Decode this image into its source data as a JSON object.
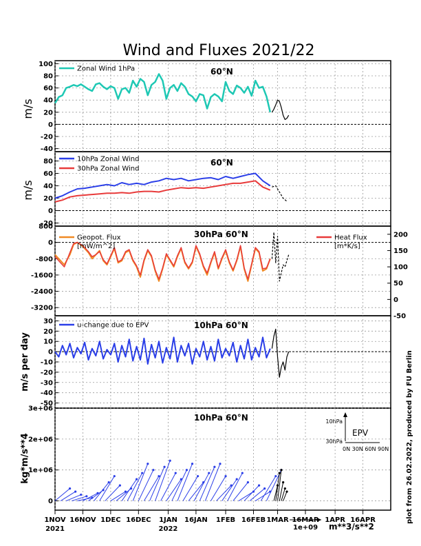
{
  "title": "Wind and Fluxes 2021/22",
  "side_note": "plot from 26.02.2022, produced by FU Berlin",
  "x_axis": {
    "ticks": [
      {
        "day": 0,
        "label": "1NOV",
        "year": "2021"
      },
      {
        "day": 15,
        "label": "16NOV"
      },
      {
        "day": 30,
        "label": "1DEC"
      },
      {
        "day": 45,
        "label": "16DEC"
      },
      {
        "day": 61,
        "label": "1JAN",
        "year": "2022"
      },
      {
        "day": 76,
        "label": "16JAN"
      },
      {
        "day": 92,
        "label": "1FEB"
      },
      {
        "day": 107,
        "label": "16FEB"
      },
      {
        "day": 120,
        "label": "1MAR"
      },
      {
        "day": 135,
        "label": "16MAR"
      },
      {
        "day": 151,
        "label": "1APR"
      },
      {
        "day": 166,
        "label": "16APR"
      }
    ],
    "range": [
      0,
      181
    ]
  },
  "scale_arrow": {
    "label": "1e+09",
    "units": "m**3/s**2"
  },
  "panels": {
    "p1": {
      "label": "60°N",
      "ylabel": "m/s",
      "yticks": [
        "100",
        "80",
        "60",
        "40",
        "20",
        "0",
        "-20",
        "-40"
      ],
      "legend": [
        "Zonal Wind 1hPa"
      ]
    },
    "p2": {
      "label": "60°N",
      "ylabel": "m/s",
      "yticks": [
        "80",
        "60",
        "40",
        "20",
        "0",
        "-20"
      ],
      "legend": [
        "10hPa Zonal Wind",
        "30hPa Zonal Wind"
      ]
    },
    "p3": {
      "label": "30hPa 60°N",
      "yticks_left": [
        "-3200",
        "-2400",
        "-1600",
        "-800",
        "0",
        "800"
      ],
      "yticks_right": [
        "200",
        "150",
        "100",
        "50",
        "0",
        "-50"
      ],
      "legend_left": [
        "Geopot. Flux",
        "[mW/m^2]"
      ],
      "legend_right": [
        "Heat Flux",
        "[m*K/s]"
      ]
    },
    "p4": {
      "label": "10hPa 60°N",
      "ylabel": "m/s per day",
      "yticks": [
        "30",
        "20",
        "10",
        "0",
        "-10",
        "-20",
        "-30",
        "-40",
        "-50"
      ],
      "legend": [
        "u-change due to EPV"
      ]
    },
    "p5": {
      "label": "10hPa 60°N",
      "ylabel": "kg*m/s**4",
      "yticks": [
        "3e+06",
        "2e+06",
        "1e+06",
        "0"
      ],
      "inset": {
        "title": "EPV",
        "y1": "10hPa",
        "y2": "30hPa",
        "x": "0N 30N 60N 90N"
      }
    }
  },
  "chart_data": [
    {
      "type": "line",
      "title": "60°N",
      "ylabel": "m/s",
      "ylim": [
        -45,
        105
      ],
      "series": [
        {
          "name": "Zonal Wind 1hPa",
          "color": "#1ec8b4",
          "x": [
            0,
            2,
            4,
            6,
            8,
            10,
            12,
            14,
            16,
            18,
            20,
            22,
            24,
            26,
            28,
            30,
            32,
            34,
            36,
            38,
            40,
            42,
            44,
            46,
            48,
            50,
            52,
            54,
            56,
            58,
            60,
            62,
            64,
            66,
            68,
            70,
            72,
            74,
            76,
            78,
            80,
            82,
            84,
            86,
            88,
            90,
            92,
            94,
            96,
            98,
            100,
            102,
            104,
            106,
            108,
            110,
            112,
            114,
            116
          ],
          "values": [
            35,
            45,
            48,
            60,
            62,
            65,
            63,
            66,
            62,
            58,
            55,
            66,
            68,
            62,
            58,
            63,
            60,
            42,
            58,
            60,
            52,
            72,
            62,
            75,
            70,
            48,
            65,
            70,
            83,
            72,
            42,
            60,
            65,
            55,
            68,
            62,
            50,
            46,
            38,
            50,
            48,
            26,
            45,
            50,
            46,
            38,
            70,
            55,
            50,
            64,
            60,
            52,
            62,
            47,
            72,
            60,
            62,
            46,
            20
          ]
        },
        {
          "name": "forecast",
          "color": "#000",
          "x": [
            117,
            118,
            119,
            120,
            121,
            122,
            123,
            124,
            125,
            126
          ],
          "values": [
            20,
            25,
            32,
            40,
            38,
            28,
            15,
            8,
            10,
            15
          ]
        }
      ]
    },
    {
      "type": "line",
      "title": "60°N",
      "ylabel": "m/s",
      "ylim": [
        -25,
        95
      ],
      "series": [
        {
          "name": "10hPa Zonal Wind",
          "color": "#2a3ee8",
          "x": [
            0,
            4,
            8,
            12,
            16,
            20,
            24,
            28,
            32,
            36,
            40,
            44,
            48,
            52,
            56,
            60,
            64,
            68,
            72,
            76,
            80,
            84,
            88,
            92,
            96,
            100,
            104,
            108,
            112,
            116
          ],
          "values": [
            20,
            24,
            30,
            35,
            36,
            38,
            40,
            42,
            40,
            45,
            42,
            44,
            42,
            46,
            48,
            52,
            50,
            52,
            48,
            50,
            52,
            53,
            50,
            55,
            52,
            55,
            58,
            60,
            48,
            40
          ]
        },
        {
          "name": "30hPa Zonal Wind",
          "color": "#e83a3a",
          "x": [
            0,
            4,
            8,
            12,
            16,
            20,
            24,
            28,
            32,
            36,
            40,
            44,
            48,
            52,
            56,
            60,
            64,
            68,
            72,
            76,
            80,
            84,
            88,
            92,
            96,
            100,
            104,
            108,
            112,
            116
          ],
          "values": [
            14,
            17,
            22,
            24,
            25,
            26,
            27,
            28,
            28,
            29,
            28,
            30,
            31,
            31,
            30,
            33,
            35,
            37,
            36,
            37,
            36,
            38,
            40,
            42,
            44,
            44,
            46,
            48,
            38,
            33
          ]
        },
        {
          "name": "forecast",
          "color": "#000",
          "x": [
            117,
            119,
            121,
            123,
            125
          ],
          "values": [
            38,
            40,
            30,
            20,
            15
          ]
        }
      ]
    },
    {
      "type": "line",
      "title": "30hPa 60°N",
      "ylabel": "Geopot. Flux [mW/m^2]",
      "ylim": [
        -3600,
        800
      ],
      "y2lim": [
        -50,
        225
      ],
      "series": [
        {
          "name": "Geopot. Flux",
          "color": "#f08a24",
          "x": [
            0,
            3,
            5,
            8,
            10,
            12,
            15,
            18,
            20,
            22,
            24,
            26,
            28,
            30,
            32,
            34,
            36,
            38,
            40,
            42,
            44,
            46,
            48,
            50,
            52,
            54,
            56,
            58,
            60,
            62,
            64,
            66,
            68,
            70,
            72,
            74,
            76,
            78,
            80,
            82,
            84,
            86,
            88,
            90,
            92,
            94,
            96,
            98,
            100,
            102,
            104,
            106,
            108,
            110,
            112,
            114,
            116
          ],
          "values": [
            -600,
            -900,
            -1100,
            -600,
            -100,
            0,
            -200,
            -500,
            -800,
            -600,
            -400,
            -900,
            -1100,
            -700,
            -300,
            -1000,
            -900,
            -500,
            -400,
            -900,
            -1200,
            -1700,
            -900,
            -400,
            -700,
            -1400,
            -1900,
            -1300,
            -600,
            -900,
            -1200,
            -700,
            -300,
            -1000,
            -1300,
            -1000,
            -200,
            -600,
            -1200,
            -1600,
            -1000,
            -500,
            -1300,
            -800,
            -400,
            -1000,
            -1400,
            -900,
            -200,
            -1300,
            -1900,
            -1100,
            -300,
            -500,
            -1400,
            -1300,
            -800
          ]
        },
        {
          "name": "Heat Flux",
          "color": "#e83a3a",
          "x": [
            0,
            3,
            5,
            8,
            10,
            12,
            15,
            18,
            20,
            22,
            24,
            26,
            28,
            30,
            32,
            34,
            36,
            38,
            40,
            42,
            44,
            46,
            48,
            50,
            52,
            54,
            56,
            58,
            60,
            62,
            64,
            66,
            68,
            70,
            72,
            74,
            76,
            78,
            80,
            82,
            84,
            86,
            88,
            90,
            92,
            94,
            96,
            98,
            100,
            102,
            104,
            106,
            108,
            110,
            112,
            114,
            116
          ],
          "values": [
            -700,
            -1000,
            -1200,
            -500,
            -50,
            0,
            -150,
            -450,
            -700,
            -600,
            -450,
            -850,
            -1050,
            -650,
            -250,
            -950,
            -850,
            -450,
            -350,
            -850,
            -1150,
            -1600,
            -850,
            -350,
            -650,
            -1350,
            -1800,
            -1250,
            -550,
            -850,
            -1150,
            -650,
            -250,
            -950,
            -1250,
            -950,
            -150,
            -550,
            -1150,
            -1500,
            -950,
            -450,
            -1250,
            -750,
            -350,
            -950,
            -1350,
            -850,
            -150,
            -1250,
            -1800,
            -1050,
            -250,
            -450,
            -1300,
            -1250,
            -800
          ]
        },
        {
          "name": "forecast",
          "color": "#000",
          "x": [
            117,
            118,
            119,
            120,
            121,
            122,
            123,
            124,
            125,
            126
          ],
          "values": [
            -800,
            500,
            -1000,
            300,
            -1900,
            -1500,
            -1100,
            -1200,
            -900,
            -600
          ]
        }
      ]
    },
    {
      "type": "line",
      "title": "10hPa 60°N",
      "ylabel": "m/s per day",
      "ylim": [
        -55,
        35
      ],
      "series": [
        {
          "name": "u-change due to EPV",
          "color": "#2a3ee8",
          "x": [
            0,
            2,
            4,
            6,
            8,
            10,
            12,
            14,
            16,
            18,
            20,
            22,
            24,
            26,
            28,
            30,
            32,
            34,
            36,
            38,
            40,
            42,
            44,
            46,
            48,
            50,
            52,
            54,
            56,
            58,
            60,
            62,
            64,
            66,
            68,
            70,
            72,
            74,
            76,
            78,
            80,
            82,
            84,
            86,
            88,
            90,
            92,
            94,
            96,
            98,
            100,
            102,
            104,
            106,
            108,
            110,
            112,
            114,
            116
          ],
          "values": [
            0,
            -5,
            6,
            -3,
            8,
            -6,
            4,
            -2,
            9,
            -8,
            3,
            -4,
            10,
            -7,
            2,
            -3,
            8,
            -10,
            6,
            -5,
            12,
            -9,
            5,
            -8,
            13,
            -12,
            7,
            -6,
            10,
            -11,
            4,
            -7,
            14,
            -10,
            6,
            -4,
            8,
            -12,
            3,
            -5,
            10,
            -8,
            5,
            -9,
            12,
            -6,
            3,
            -4,
            9,
            -10,
            6,
            -7,
            12,
            -8,
            4,
            -5,
            14,
            -6,
            3
          ]
        },
        {
          "name": "forecast",
          "color": "#000",
          "x": [
            117,
            118,
            119,
            120,
            121,
            122,
            123,
            124,
            125,
            126
          ],
          "values": [
            3,
            15,
            22,
            -5,
            -25,
            -15,
            -10,
            -18,
            -5,
            0
          ]
        }
      ]
    },
    {
      "type": "scatter",
      "title": "10hPa 60°N",
      "ylabel": "kg*m/s**4",
      "ylim": [
        -300000,
        3000000
      ],
      "series": [
        {
          "name": "EPV vectors",
          "color": "#2a3ee8",
          "x": [
            0,
            3,
            6,
            9,
            12,
            15,
            18,
            21,
            24,
            27,
            30,
            33,
            36,
            39,
            42,
            45,
            48,
            51,
            54,
            57,
            60,
            63,
            66,
            69,
            72,
            75,
            78,
            81,
            84,
            87,
            90,
            93,
            96,
            99,
            102,
            105,
            108,
            111,
            114
          ],
          "values": [
            400000,
            300000,
            200000,
            150000,
            100000,
            250000,
            350000,
            600000,
            800000,
            500000,
            300000,
            400000,
            700000,
            900000,
            1200000,
            1000000,
            800000,
            1100000,
            1300000,
            900000,
            700000,
            1000000,
            1200000,
            800000,
            600000,
            900000,
            1100000,
            1200000,
            800000,
            500000,
            700000,
            900000,
            600000,
            300000,
            500000,
            400000,
            300000,
            800000,
            1000000
          ]
        },
        {
          "name": "forecast",
          "color": "#000",
          "x": [
            118,
            119,
            120,
            121,
            122,
            123
          ],
          "values": [
            500000,
            900000,
            1000000,
            600000,
            400000,
            300000
          ]
        }
      ]
    }
  ]
}
